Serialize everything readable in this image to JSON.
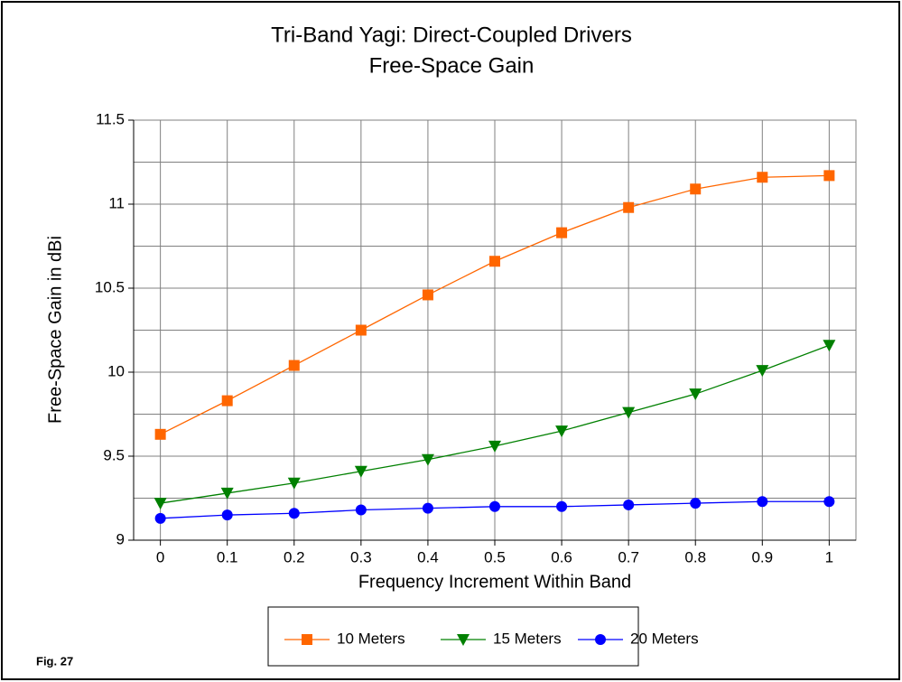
{
  "chart_data": {
    "type": "line",
    "title": "Tri-Band Yagi:  Direct-Coupled Drivers",
    "subtitle": "Free-Space Gain",
    "xlabel": "Frequency Increment Within Band",
    "ylabel": "Free-Space Gain in dBi",
    "annotation": "Fig. 27",
    "x": [
      0,
      0.1,
      0.2,
      0.3,
      0.4,
      0.5,
      0.6,
      0.7,
      0.8,
      0.9,
      1
    ],
    "series": [
      {
        "name": "10 Meters",
        "color": "#ff6600",
        "marker": "square",
        "values": [
          9.63,
          9.83,
          10.04,
          10.25,
          10.46,
          10.66,
          10.83,
          10.98,
          11.09,
          11.16,
          11.17
        ]
      },
      {
        "name": "15 Meters",
        "color": "#008000",
        "marker": "triangle-down",
        "values": [
          9.22,
          9.28,
          9.34,
          9.41,
          9.48,
          9.56,
          9.65,
          9.76,
          9.87,
          10.01,
          10.16
        ]
      },
      {
        "name": "20 Meters",
        "color": "#0000ff",
        "marker": "circle",
        "values": [
          9.13,
          9.15,
          9.16,
          9.18,
          9.19,
          9.2,
          9.2,
          9.21,
          9.22,
          9.23,
          9.23
        ]
      }
    ],
    "xlim": [
      -0.04,
      1.04
    ],
    "xticks": [
      0,
      0.1,
      0.2,
      0.3,
      0.4,
      0.5,
      0.6,
      0.7,
      0.8,
      0.9,
      1
    ],
    "ylim": [
      9,
      11.5
    ],
    "yticks": [
      9,
      9.5,
      10,
      10.5,
      11,
      11.5
    ],
    "y_minor_grid": [
      9.25,
      9.75,
      10.25,
      10.75,
      11.25
    ],
    "grid": true,
    "legend": "bottom"
  }
}
